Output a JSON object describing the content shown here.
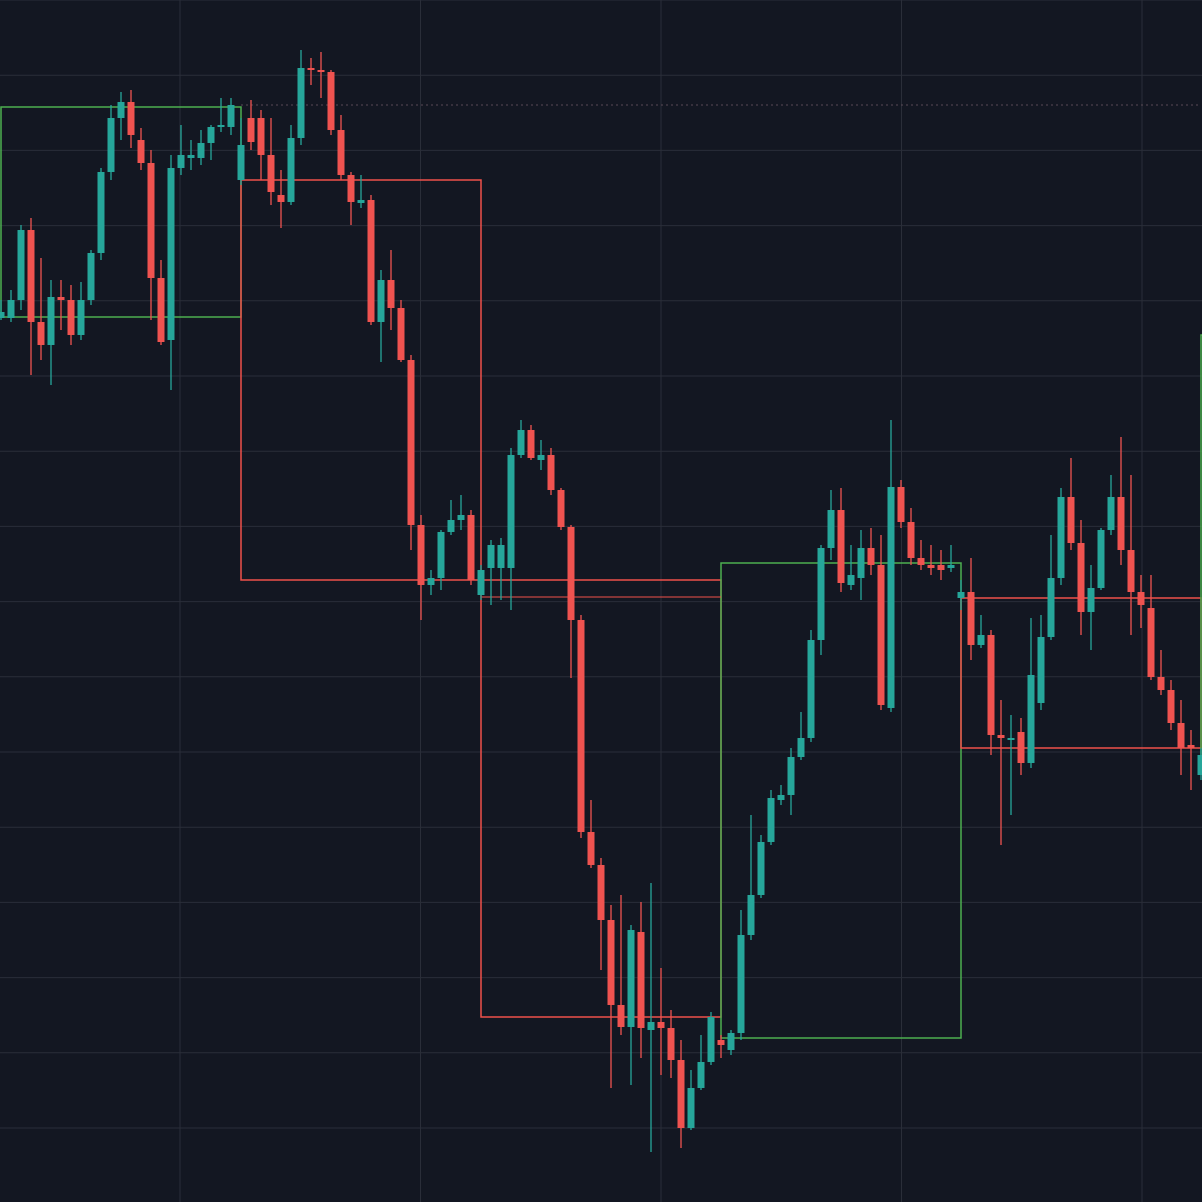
{
  "chart_data": {
    "type": "candlestick",
    "ylim": [
      0,
      1202
    ],
    "up_color": "#26a69a",
    "down_color": "#ef5350",
    "background": "#131722",
    "grid_color": "#2a2e39",
    "open": [
      884,
      884,
      902,
      972,
      880,
      857,
      905,
      902,
      867,
      902,
      949,
      1030,
      1084,
      1100,
      1062,
      1039,
      924,
      862,
      1034,
      1044,
      1044,
      1059,
      1075,
      1075,
      1022,
      1084,
      1084,
      1047,
      1007,
      1000,
      1064,
      1134,
      1132,
      1130,
      1072,
      1027,
      999,
      1002,
      880,
      922,
      894,
      842,
      677,
      617,
      624,
      670,
      682,
      687,
      607,
      634,
      634,
      634,
      747,
      772,
      742,
      747,
      712,
      675,
      582,
      370,
      337,
      282,
      197,
      175,
      270,
      172,
      180,
      174,
      142,
      74,
      114,
      140,
      162,
      152,
      169,
      267,
      307,
      360,
      402,
      407,
      445,
      464,
      562,
      654,
      692,
      617,
      624,
      654,
      637,
      494,
      715,
      680,
      644,
      637,
      637,
      634,
      604,
      610,
      557,
      567,
      467,
      462,
      470,
      439,
      499,
      565,
      624,
      705,
      659,
      590,
      614,
      672,
      705,
      652,
      610,
      594,
      525,
      512,
      479,
      457,
      427
    ],
    "high": [
      902,
      912,
      977,
      984,
      944,
      922,
      922,
      917,
      920,
      952,
      1034,
      1097,
      1110,
      1112,
      1074,
      1052,
      942,
      1047,
      1077,
      1062,
      1072,
      1077,
      1104,
      1104,
      1084,
      1102,
      1092,
      1084,
      1032,
      1077,
      1152,
      1144,
      1150,
      1132,
      1087,
      1030,
      1027,
      1007,
      932,
      952,
      902,
      847,
      687,
      632,
      672,
      702,
      707,
      692,
      637,
      662,
      664,
      754,
      782,
      777,
      762,
      754,
      714,
      677,
      587,
      402,
      344,
      297,
      307,
      277,
      300,
      319,
      234,
      192,
      162,
      132,
      167,
      190,
      167,
      172,
      292,
      387,
      367,
      412,
      417,
      454,
      490,
      572,
      657,
      712,
      714,
      657,
      672,
      674,
      667,
      782,
      722,
      694,
      662,
      657,
      652,
      657,
      622,
      644,
      587,
      572,
      502,
      487,
      484,
      584,
      587,
      667,
      714,
      744,
      682,
      637,
      674,
      727,
      765,
      727,
      627,
      627,
      552,
      522,
      502,
      472,
      454
    ],
    "low": [
      882,
      880,
      892,
      827,
      842,
      817,
      872,
      857,
      862,
      897,
      942,
      1022,
      1062,
      1054,
      1032,
      882,
      857,
      812,
      1027,
      1032,
      1037,
      1042,
      1070,
      1067,
      1017,
      1052,
      1022,
      997,
      974,
      997,
      1057,
      1117,
      1104,
      1067,
      1022,
      977,
      994,
      877,
      840,
      872,
      840,
      652,
      582,
      607,
      612,
      667,
      672,
      617,
      602,
      597,
      602,
      592,
      744,
      742,
      732,
      707,
      672,
      524,
      364,
      334,
      232,
      114,
      167,
      117,
      144,
      50,
      127,
      124,
      54,
      72,
      112,
      137,
      144,
      147,
      162,
      262,
      304,
      357,
      397,
      387,
      442,
      460,
      547,
      642,
      610,
      612,
      602,
      627,
      492,
      490,
      674,
      637,
      632,
      627,
      622,
      630,
      592,
      542,
      554,
      447,
      357,
      387,
      427,
      434,
      492,
      562,
      617,
      652,
      567,
      552,
      612,
      667,
      637,
      567,
      574,
      522,
      507,
      472,
      427,
      412,
      422
    ],
    "close": [
      890,
      902,
      972,
      880,
      857,
      905,
      902,
      867,
      902,
      949,
      1030,
      1084,
      1100,
      1067,
      1039,
      924,
      860,
      1034,
      1047,
      1047,
      1059,
      1075,
      1077,
      1097,
      1057,
      1060,
      1047,
      1010,
      1000,
      1064,
      1134,
      1132,
      1130,
      1072,
      1027,
      1000,
      1002,
      880,
      922,
      894,
      842,
      677,
      617,
      624,
      670,
      682,
      687,
      622,
      632,
      657,
      657,
      747,
      772,
      744,
      747,
      712,
      675,
      582,
      370,
      337,
      282,
      197,
      175,
      272,
      174,
      180,
      174,
      142,
      74,
      114,
      140,
      185,
      157,
      169,
      267,
      307,
      360,
      404,
      407,
      445,
      464,
      562,
      654,
      692,
      619,
      627,
      654,
      637,
      497,
      715,
      680,
      644,
      637,
      634,
      632,
      637,
      610,
      557,
      567,
      467,
      464,
      464,
      439,
      527,
      565,
      624,
      705,
      659,
      590,
      614,
      672,
      705,
      652,
      610,
      597,
      525,
      512,
      479,
      454,
      454,
      447
    ],
    "boxes": [
      {
        "start": 0,
        "end": 24,
        "high": 1095,
        "low": 885,
        "color": "#4caf50"
      },
      {
        "start": 24,
        "end": 48,
        "high": 1022,
        "low": 622,
        "color": "#f0504a"
      },
      {
        "start": 48,
        "end": 72,
        "high": 622,
        "low": 185,
        "color": "#f0504a"
      },
      {
        "start": 72,
        "end": 96,
        "high": 639,
        "low": 164,
        "color": "#4caf50"
      },
      {
        "start": 96,
        "end": 120,
        "high": 604,
        "low": 454,
        "color": "#f0504a"
      },
      {
        "start": 120,
        "end": 144,
        "high": 867,
        "low": 440,
        "color": "#4caf50"
      }
    ],
    "levels": [
      {
        "start": 48,
        "end": 72,
        "value": 605,
        "color": "#f0504a",
        "style": "solid"
      },
      {
        "start": 24,
        "end": 120,
        "value": 1097,
        "color": "#5a4a55",
        "style": "dotted"
      },
      {
        "start": 0,
        "end": 24,
        "value": 885,
        "color": "#4caf50",
        "style": "dotted"
      }
    ]
  }
}
